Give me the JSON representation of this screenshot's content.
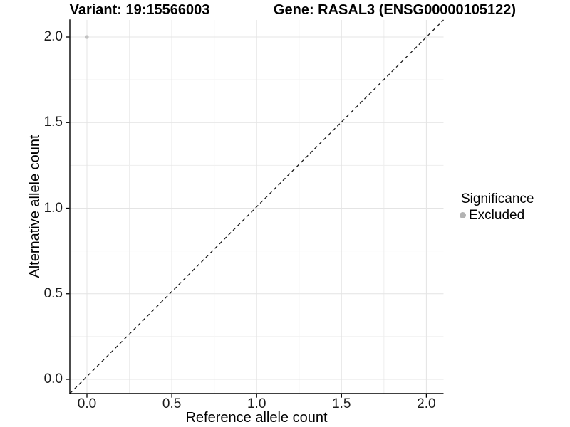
{
  "titles": {
    "variant": "Variant: 19:15566003",
    "gene": "Gene: RASAL3 (ENSG00000105122)"
  },
  "chart_data": {
    "type": "scatter",
    "title_left": "Variant: 19:15566003",
    "title_right": "Gene: RASAL3 (ENSG00000105122)",
    "xlabel": "Reference allele count",
    "ylabel": "Alternative allele count",
    "xlim": [
      -0.1,
      2.1
    ],
    "ylim": [
      -0.1,
      2.1
    ],
    "x_tick_labels": [
      "0.0",
      "0.5",
      "1.0",
      "1.5",
      "2.0"
    ],
    "x_tick_values": [
      0,
      0.5,
      1,
      1.5,
      2
    ],
    "y_tick_labels": [
      "0.0",
      "0.5",
      "1.0",
      "1.5",
      "2.0"
    ],
    "y_tick_values": [
      0,
      0.5,
      1,
      1.5,
      2
    ],
    "minor_tick_values": [
      0.25,
      0.75,
      1.25,
      1.75
    ],
    "grid": "major-and-minor",
    "reference_line": {
      "type": "identity y=x",
      "style": "dashed",
      "from": [
        -0.1,
        -0.1
      ],
      "to": [
        2.1,
        2.1
      ]
    },
    "series": [
      {
        "name": "Excluded",
        "color": "#c2c2c2",
        "points": [
          {
            "x": 0,
            "y": 2
          }
        ]
      }
    ],
    "legend": {
      "title": "Significance",
      "position": "right",
      "items": [
        {
          "label": "Excluded",
          "color": "#b3b3b3"
        }
      ]
    }
  },
  "colors": {
    "background": "#ffffff",
    "grid_major": "#e4e4e4",
    "grid_minor": "#eeeeee",
    "axis_line": "#000000",
    "tick_mark": "#000000",
    "tick_label": "#1a1a1a",
    "dashed_line": "#1a1a1a"
  }
}
